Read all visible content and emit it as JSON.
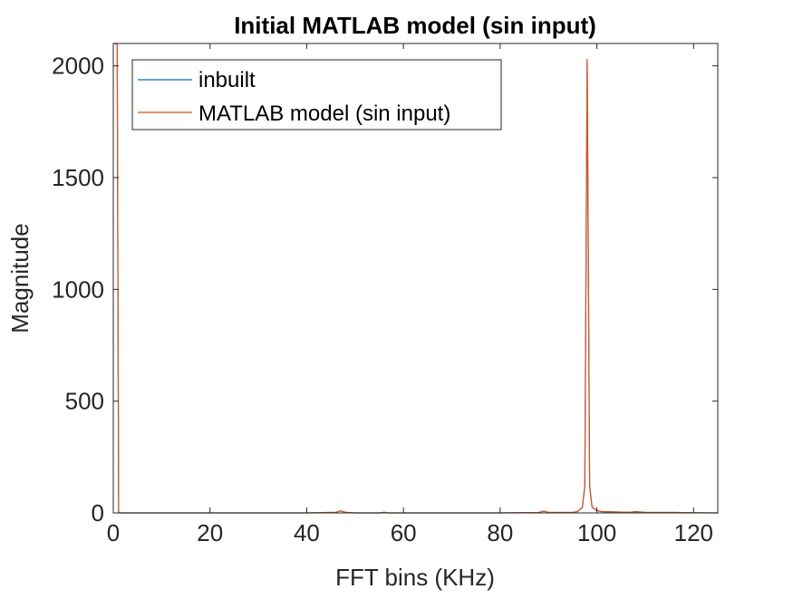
{
  "chart_data": {
    "type": "line",
    "title": "Initial MATLAB model (sin input)",
    "xlabel": "FFT bins (KHz)",
    "ylabel": "Magnitude",
    "xlim": [
      0,
      125
    ],
    "ylim": [
      0,
      2100
    ],
    "xticks": [
      0,
      20,
      40,
      60,
      80,
      100,
      120
    ],
    "yticks": [
      0,
      500,
      1000,
      1500,
      2000
    ],
    "xtick_labels": [
      "0",
      "20",
      "40",
      "60",
      "80",
      "100",
      "120"
    ],
    "ytick_labels": [
      "0",
      "500",
      "1000",
      "1500",
      "2000"
    ],
    "grid": false,
    "legend_placement": "top-left",
    "series": [
      {
        "name": "inbuilt",
        "color": "#0072BD",
        "x": [
          0,
          0.2,
          0.5,
          0.8,
          1.1,
          1.5,
          5,
          20,
          40,
          46,
          47,
          48,
          50,
          55,
          56,
          57,
          60,
          70,
          80,
          88,
          89,
          90,
          95,
          96,
          97,
          97.5,
          98,
          98.5,
          99,
          100,
          101,
          104,
          107,
          108,
          110,
          116,
          120,
          125
        ],
        "y": [
          2100,
          2100,
          2100,
          2100,
          5,
          0,
          0,
          0,
          0,
          3,
          9,
          3,
          0,
          0,
          3,
          0,
          0,
          0,
          0,
          2,
          8,
          2,
          2,
          6,
          25,
          120,
          2030,
          120,
          25,
          10,
          6,
          4,
          3,
          6,
          2,
          2,
          1,
          0
        ]
      },
      {
        "name": "MATLAB model (sin input)",
        "color": "#D95319",
        "x": [
          0,
          0.2,
          0.5,
          0.8,
          1.1,
          1.5,
          5,
          20,
          40,
          46,
          47,
          48,
          50,
          55,
          56,
          57,
          60,
          70,
          80,
          88,
          89,
          90,
          95,
          96,
          97,
          97.5,
          98,
          98.5,
          99,
          100,
          101,
          104,
          107,
          108,
          110,
          116,
          120,
          125
        ],
        "y": [
          2100,
          2100,
          2100,
          2100,
          5,
          0,
          0,
          0,
          0,
          3,
          9,
          3,
          0,
          0,
          3,
          0,
          0,
          0,
          0,
          2,
          8,
          2,
          2,
          6,
          25,
          120,
          2030,
          120,
          25,
          10,
          6,
          4,
          3,
          6,
          2,
          2,
          1,
          0
        ]
      }
    ]
  }
}
